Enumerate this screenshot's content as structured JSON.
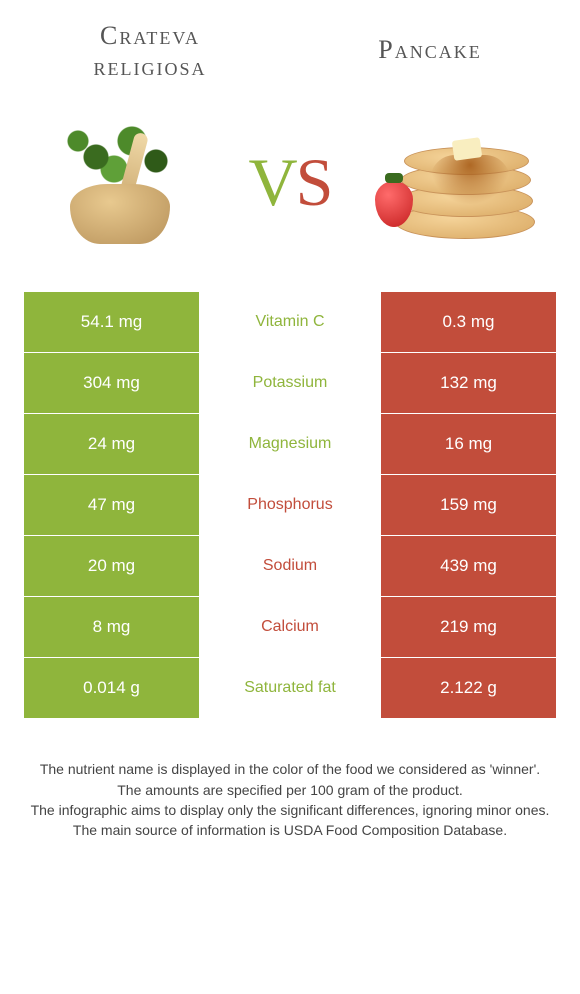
{
  "header": {
    "left_title": "Crateva religiosa",
    "right_title": "Pancake"
  },
  "vs": {
    "v": "V",
    "s": "S"
  },
  "colors": {
    "left": "#8fb53c",
    "right": "#c24d3b"
  },
  "rows": [
    {
      "left": "54.1 mg",
      "label": "Vitamin C",
      "right": "0.3 mg",
      "winner": "left"
    },
    {
      "left": "304 mg",
      "label": "Potassium",
      "right": "132 mg",
      "winner": "left"
    },
    {
      "left": "24 mg",
      "label": "Magnesium",
      "right": "16 mg",
      "winner": "left"
    },
    {
      "left": "47 mg",
      "label": "Phosphorus",
      "right": "159 mg",
      "winner": "right"
    },
    {
      "left": "20 mg",
      "label": "Sodium",
      "right": "439 mg",
      "winner": "right"
    },
    {
      "left": "8 mg",
      "label": "Calcium",
      "right": "219 mg",
      "winner": "right"
    },
    {
      "left": "0.014 g",
      "label": "Saturated fat",
      "right": "2.122 g",
      "winner": "left"
    }
  ],
  "footer": {
    "line1": "The nutrient name is displayed in the color of the food we considered as 'winner'.",
    "line2": "The amounts are specified per 100 gram of the product.",
    "line3": "The infographic aims to display only the significant differences, ignoring minor ones.",
    "line4": "The main source of information is USDA Food Composition Database."
  }
}
